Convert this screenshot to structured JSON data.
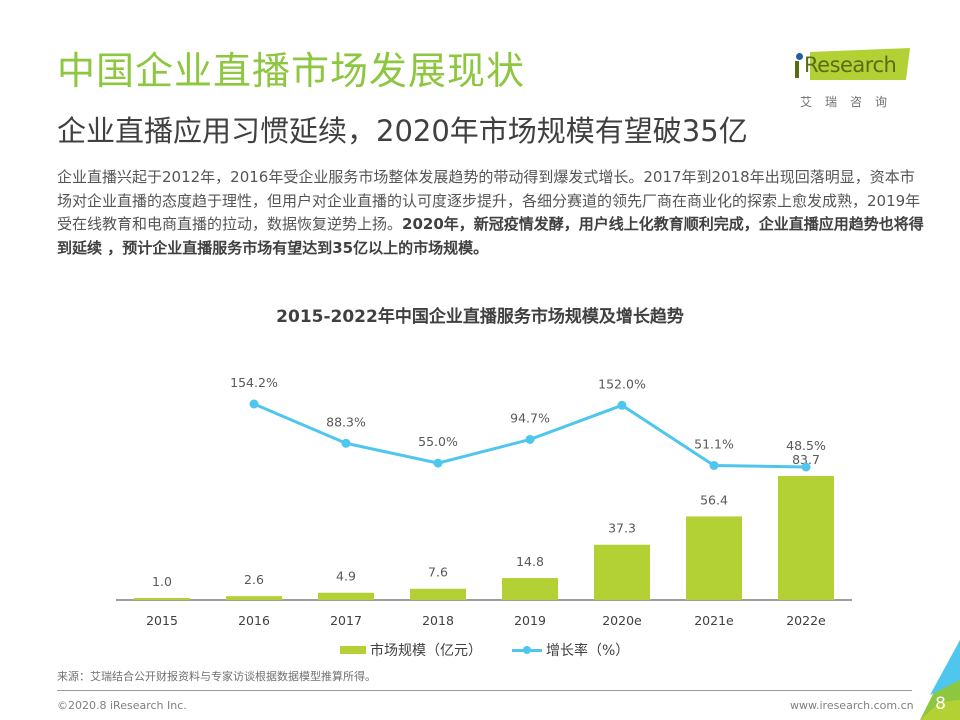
{
  "header": {
    "title": "中国企业直播市场发展现状",
    "subtitle": "企业直播应用习惯延续，2020年市场规模有望破35亿"
  },
  "logo": {
    "brand": "Research",
    "brand_cn": "艾瑞咨询"
  },
  "intro": {
    "normal": "企业直播兴起于2012年，2016年受企业服务市场整体发展趋势的带动得到爆发式增长。2017年到2018年出现回落明显，资本市场对企业直播的态度趋于理性，但用户对企业直播的认可度逐步提升，各细分赛道的领先厂商在商业化的探索上愈发成熟，2019年受在线教育和电商直播的拉动，数据恢复逆势上扬。",
    "bold": "2020年，新冠疫情发酵，用户线上化教育顺利完成，企业直播应用趋势也将得到延续 ，预计企业直播服务市场有望达到35亿以上的市场规模。"
  },
  "chart_data": {
    "type": "bar",
    "title": "2015-2022年中国企业直播服务市场规模及增长趋势",
    "categories": [
      "2015",
      "2016",
      "2017",
      "2018",
      "2019",
      "2020e",
      "2021e",
      "2022e"
    ],
    "series": [
      {
        "name": "市场规模（亿元）",
        "type": "bar",
        "color": "#b3d135",
        "values": [
          1.0,
          2.6,
          4.9,
          7.6,
          14.8,
          37.3,
          56.4,
          83.7
        ],
        "labels": [
          "1.0",
          "2.6",
          "4.9",
          "7.6",
          "14.8",
          "37.3",
          "56.4",
          "83.7"
        ]
      },
      {
        "name": "增长率（%）",
        "type": "line",
        "color": "#4fc6ee",
        "values": [
          null,
          154.2,
          88.3,
          55.0,
          94.7,
          152.0,
          51.1,
          48.5
        ],
        "labels": [
          null,
          "154.2%",
          "88.3%",
          "55.0%",
          "94.7%",
          "152.0%",
          "51.1%",
          "48.5%"
        ]
      }
    ],
    "xlabel": "",
    "ylabel": "",
    "legend": "bottom",
    "grid": false
  },
  "legend": {
    "bar_label": "市场规模（亿元）",
    "line_label": "增长率（%）"
  },
  "footer": {
    "source": "来源：艾瑞结合公开财报资料与专家访谈根据数据模型推算所得。",
    "copyright": "©2020.8 iResearch Inc.",
    "website": "www.iresearch.com.cn",
    "page_number": "8"
  }
}
